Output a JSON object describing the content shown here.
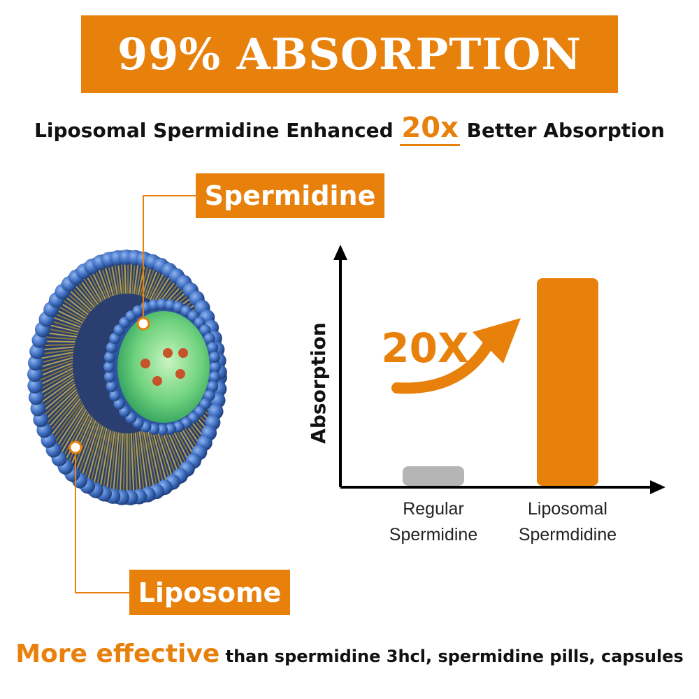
{
  "banner": {
    "title": "99% ABSORPTION"
  },
  "subtitle": {
    "before": "Liposomal Spermidine Enhanced",
    "highlight": "20x",
    "after": "Better Absorption"
  },
  "labels": {
    "spermidine": "Spermidine",
    "liposome": "Liposome"
  },
  "chart_data": {
    "type": "bar",
    "ylabel": "Absorption",
    "annotation": "20X",
    "categories": [
      "Regular Spermidine",
      "Liposomal Spermdidine"
    ],
    "category_lines": [
      [
        "Regular",
        "Spermidine"
      ],
      [
        "Liposomal",
        "Spermdidine"
      ]
    ],
    "values": [
      1,
      20
    ],
    "colors": [
      "#B5B5B5",
      "#E8800C"
    ]
  },
  "footer": {
    "highlight": "More effective",
    "rest": "than spermidine 3hcl, spermidine pills, capsules"
  },
  "colors": {
    "accent": "#E8800C",
    "membrane_heads": "#3F6FC2",
    "core": "#7FD98A"
  }
}
